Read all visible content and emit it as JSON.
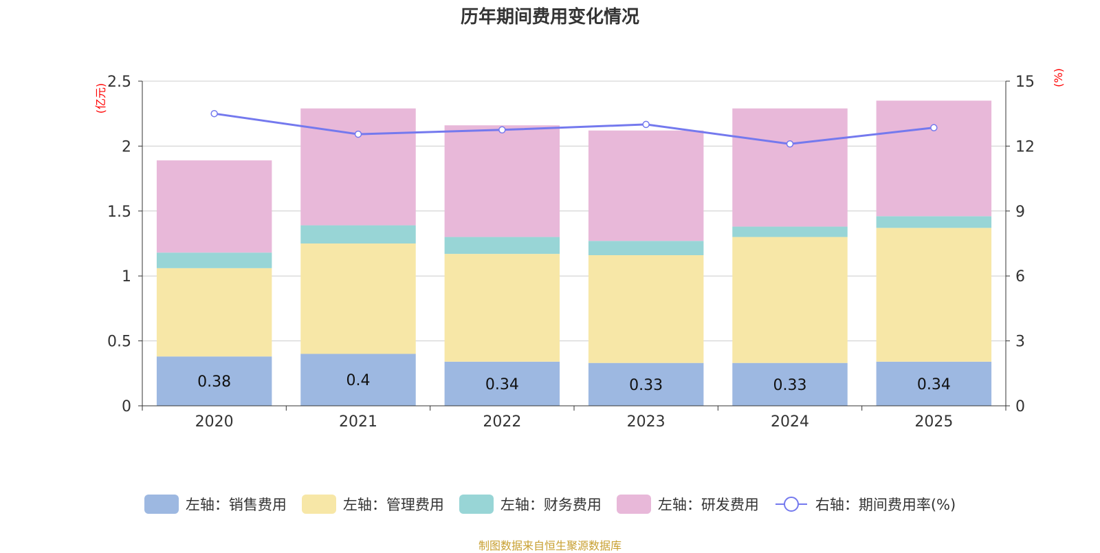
{
  "chart_data": {
    "type": "bar",
    "stacked": true,
    "title": "历年期间费用变化情况",
    "categories": [
      "2020",
      "2021",
      "2022",
      "2023",
      "2024",
      "2025"
    ],
    "left_axis": {
      "label": "(亿元)",
      "range": [
        0,
        2.5
      ],
      "ticks": [
        "0",
        "0.5",
        "1",
        "1.5",
        "2",
        "2.5"
      ],
      "tick_values": [
        0,
        0.5,
        1,
        1.5,
        2,
        2.5
      ]
    },
    "right_axis": {
      "label": "(%)",
      "range": [
        0,
        15
      ],
      "ticks": [
        "0",
        "3",
        "6",
        "9",
        "12",
        "15"
      ],
      "tick_values": [
        0,
        3,
        6,
        9,
        12,
        15
      ]
    },
    "series": [
      {
        "name": "左轴：销售费用",
        "type": "bar",
        "axis": "left",
        "color": "#9db8e1",
        "values": [
          0.38,
          0.4,
          0.34,
          0.33,
          0.33,
          0.34
        ],
        "labels": [
          "0.38",
          "0.4",
          "0.34",
          "0.33",
          "0.33",
          "0.34"
        ]
      },
      {
        "name": "左轴：管理费用",
        "type": "bar",
        "axis": "left",
        "color": "#f7e7a7",
        "values": [
          0.68,
          0.85,
          0.83,
          0.83,
          0.97,
          1.03
        ]
      },
      {
        "name": "左轴：财务费用",
        "type": "bar",
        "axis": "left",
        "color": "#98d5d6",
        "values": [
          0.12,
          0.14,
          0.13,
          0.11,
          0.08,
          0.09
        ]
      },
      {
        "name": "左轴：研发费用",
        "type": "bar",
        "axis": "left",
        "color": "#e8b8d9",
        "values": [
          0.71,
          0.9,
          0.86,
          0.85,
          0.91,
          0.89
        ]
      },
      {
        "name": "右轴：期间费用率(%)",
        "type": "line",
        "axis": "right",
        "color": "#7479ee",
        "values": [
          13.5,
          12.55,
          12.75,
          13.0,
          12.1,
          12.85
        ]
      }
    ]
  },
  "source": "制图数据来自恒生聚源数据库"
}
